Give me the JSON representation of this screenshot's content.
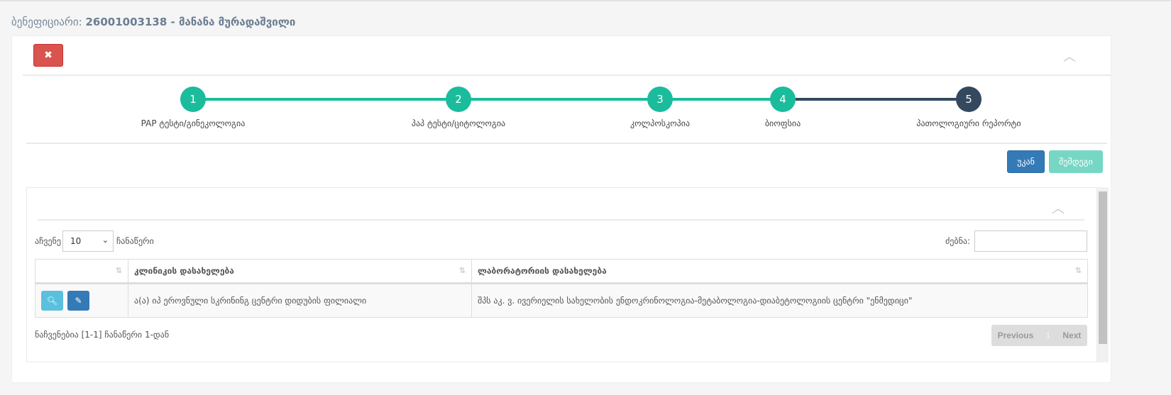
{
  "header": {
    "label": "ბენეფიციარი:",
    "value": "26001003138 - მანანა მურადაშვილი"
  },
  "icons": {
    "close": "times-icon",
    "collapse": "chevron-up-icon",
    "search": "search-icon",
    "edit": "edit-icon",
    "sort": "sort-icon",
    "dropdown": "chevron-down-icon"
  },
  "colors": {
    "step_done": "#1abc9c",
    "step_current": "#34495e",
    "danger": "#d9534f",
    "primary": "#337ab7",
    "info": "#5bc0de"
  },
  "steps": [
    {
      "number": "1",
      "label": "PAP ტესტი/გინეკოლოგია",
      "state": "done"
    },
    {
      "number": "2",
      "label": "პაპ ტესტი/ციტოლოგია",
      "state": "done"
    },
    {
      "number": "3",
      "label": "კოლპოსკოპია",
      "state": "done"
    },
    {
      "number": "4",
      "label": "ბიოფსია",
      "state": "done"
    },
    {
      "number": "5",
      "label": "პათოლოგიური რეპორტი",
      "state": "current"
    }
  ],
  "nav": {
    "back": "უკან",
    "next": "შემდეგი"
  },
  "table_controls": {
    "show": "აჩვენე",
    "length": "10",
    "records": "ჩანაწერი",
    "search_label": "ძებნა:",
    "search_value": ""
  },
  "table": {
    "headers": [
      "",
      "კლინიკის დასახელება",
      "ლაბორატორიის დასახელება"
    ],
    "rows": [
      {
        "clinic": "ა(ა) იპ ეროვნული სკრინინგ ცენტრი დიდუბის ფილიალი",
        "lab": "შპს აკ. ვ. ივერიელის სახელობის ენდოკრინოლოგია-მეტაბოლოგია-დიაბეტოლოგიის ცენტრი \"ენმედიცი\""
      }
    ]
  },
  "footer": {
    "info": "ნაჩვენებია [1-1] ჩანაწერი 1-დან",
    "previous": "Previous",
    "page": "1",
    "next": "Next"
  }
}
